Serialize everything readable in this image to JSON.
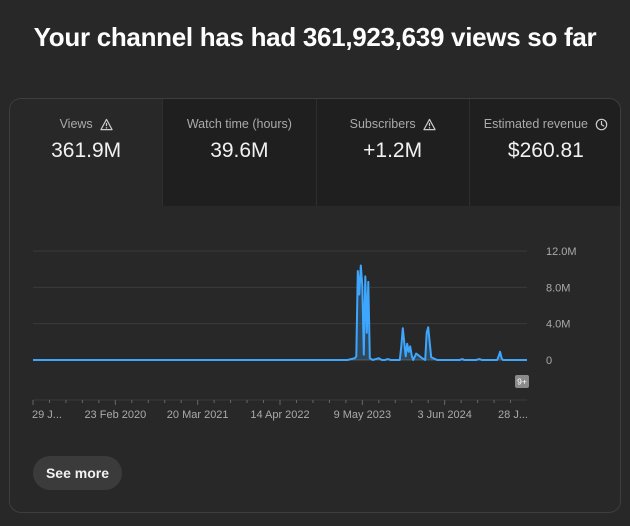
{
  "headline": "Your channel has had 361,923,639 views so far",
  "metrics": [
    {
      "label": "Views",
      "value": "361.9M",
      "icon": "warning-icon"
    },
    {
      "label": "Watch time (hours)",
      "value": "39.6M",
      "icon": ""
    },
    {
      "label": "Subscribers",
      "value": "+1.2M",
      "icon": "warning-icon"
    },
    {
      "label": "Estimated revenue",
      "value": "$260.81",
      "icon": "clock-icon"
    }
  ],
  "see_more_label": "See more",
  "badge_text": "9+",
  "colors": {
    "line": "#3ea6ff",
    "background": "#282828",
    "tile": "#1f1f1f",
    "grid": "#3a3a3a"
  },
  "chart_data": {
    "type": "line",
    "ylim": [
      0,
      12000000
    ],
    "y_ticks": [
      0,
      4000000,
      8000000,
      12000000
    ],
    "y_tick_labels": [
      "0",
      "4.0M",
      "8.0M",
      "12.0M"
    ],
    "x_tick_labels": [
      "29 J...",
      "23 Feb 2020",
      "20 Mar 2021",
      "14 Apr 2022",
      "9 May 2023",
      "3 Jun 2024",
      "28 J..."
    ],
    "x": [
      0,
      420,
      430,
      432,
      434,
      436,
      438,
      440,
      442,
      444,
      446,
      448,
      450,
      454,
      458,
      462,
      466,
      470,
      474,
      478,
      482,
      486,
      490,
      492,
      494,
      496,
      498,
      500,
      502,
      504,
      506,
      508,
      512,
      520,
      524,
      526,
      528,
      532,
      540,
      560,
      570,
      574,
      576,
      578,
      580,
      582,
      584,
      586,
      588,
      592,
      596,
      600,
      620,
      622,
      624,
      626,
      628,
      632,
      640,
      660
    ],
    "series": [
      {
        "values": [
          0,
          0,
          200000,
          400000,
          9800000,
          7200000,
          10400000,
          8200000,
          600000,
          9200000,
          3000000,
          8600000,
          200000,
          0,
          100000,
          200000,
          0,
          0,
          100000,
          0,
          0,
          0,
          0,
          1500000,
          3500000,
          2000000,
          400000,
          1800000,
          900000,
          1500000,
          500000,
          0,
          700000,
          200000,
          0,
          3000000,
          3600000,
          300000,
          0,
          0,
          0,
          100000,
          0,
          0,
          0,
          0,
          0,
          0,
          0,
          0,
          100000,
          0,
          0,
          400000,
          900000,
          200000,
          0,
          0,
          0,
          0
        ]
      }
    ]
  }
}
